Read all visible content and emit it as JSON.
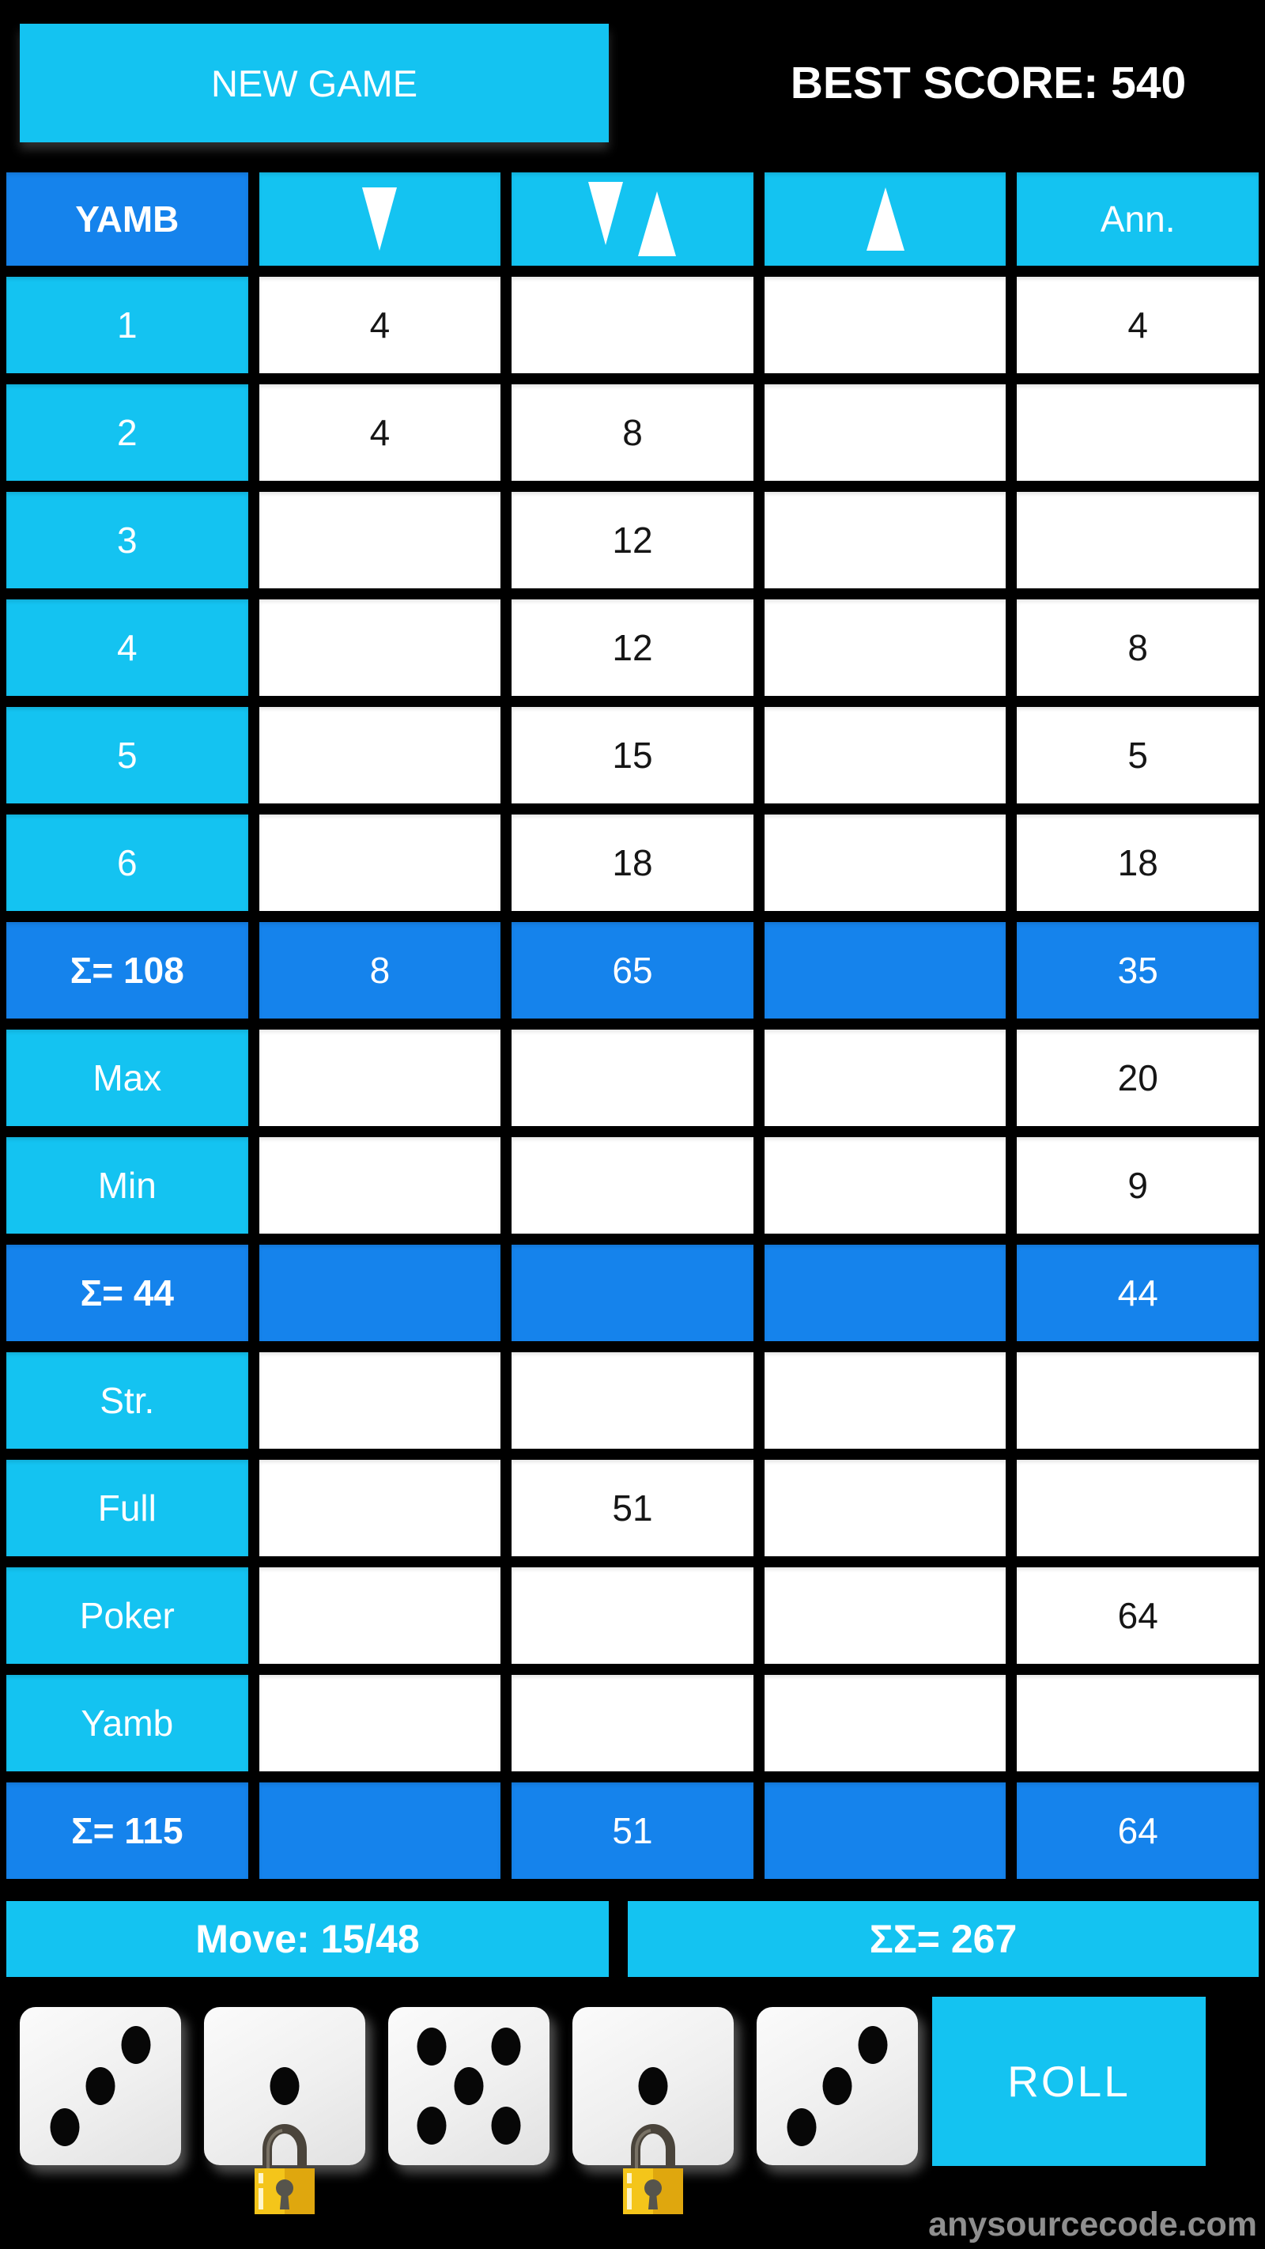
{
  "colors": {
    "cyan": "#14c3f1",
    "blue": "#1583ec",
    "lock_gold": "#f4c51a",
    "lock_gold_dark": "#dfa70e"
  },
  "top_bar": {
    "new_game_label": "NEW GAME",
    "best_score_label": "BEST SCORE: 540"
  },
  "table": {
    "corner": "YAMB",
    "columns": [
      {
        "name": "down",
        "icon": "triangle-down"
      },
      {
        "name": "down-up",
        "icon": "triangle-down-up"
      },
      {
        "name": "up",
        "icon": "triangle-up"
      },
      {
        "name": "announce",
        "label": "Ann."
      }
    ],
    "rows": [
      {
        "type": "score",
        "label": "1",
        "cells": [
          "4",
          "",
          "",
          "4"
        ]
      },
      {
        "type": "score",
        "label": "2",
        "cells": [
          "4",
          "8",
          "",
          ""
        ]
      },
      {
        "type": "score",
        "label": "3",
        "cells": [
          "",
          "12",
          "",
          ""
        ]
      },
      {
        "type": "score",
        "label": "4",
        "cells": [
          "",
          "12",
          "",
          "8"
        ]
      },
      {
        "type": "score",
        "label": "5",
        "cells": [
          "",
          "15",
          "",
          "5"
        ]
      },
      {
        "type": "score",
        "label": "6",
        "cells": [
          "",
          "18",
          "",
          "18"
        ]
      },
      {
        "type": "sum",
        "label": "Σ= 108",
        "cells": [
          "8",
          "65",
          "",
          "35"
        ]
      },
      {
        "type": "score",
        "label": "Max",
        "cells": [
          "",
          "",
          "",
          "20"
        ]
      },
      {
        "type": "score",
        "label": "Min",
        "cells": [
          "",
          "",
          "",
          "9"
        ]
      },
      {
        "type": "sum",
        "label": "Σ= 44",
        "cells": [
          "",
          "",
          "",
          "44"
        ]
      },
      {
        "type": "score",
        "label": "Str.",
        "cells": [
          "",
          "",
          "",
          ""
        ]
      },
      {
        "type": "score",
        "label": "Full",
        "cells": [
          "",
          "51",
          "",
          ""
        ]
      },
      {
        "type": "score",
        "label": "Poker",
        "cells": [
          "",
          "",
          "",
          "64"
        ]
      },
      {
        "type": "score",
        "label": "Yamb",
        "cells": [
          "",
          "",
          "",
          ""
        ]
      },
      {
        "type": "sum",
        "label": "Σ= 115",
        "cells": [
          "",
          "51",
          "",
          "64"
        ]
      }
    ]
  },
  "footer": {
    "move_label": "Move: 15/48",
    "grand_total_label": "ΣΣ= 267"
  },
  "dice": {
    "roll_label": "ROLL",
    "dice": [
      {
        "face": 3,
        "locked": false
      },
      {
        "face": 1,
        "locked": true
      },
      {
        "face": 5,
        "locked": false
      },
      {
        "face": 1,
        "locked": true
      },
      {
        "face": 3,
        "locked": false
      }
    ]
  },
  "watermark": "anysourcecode.com"
}
